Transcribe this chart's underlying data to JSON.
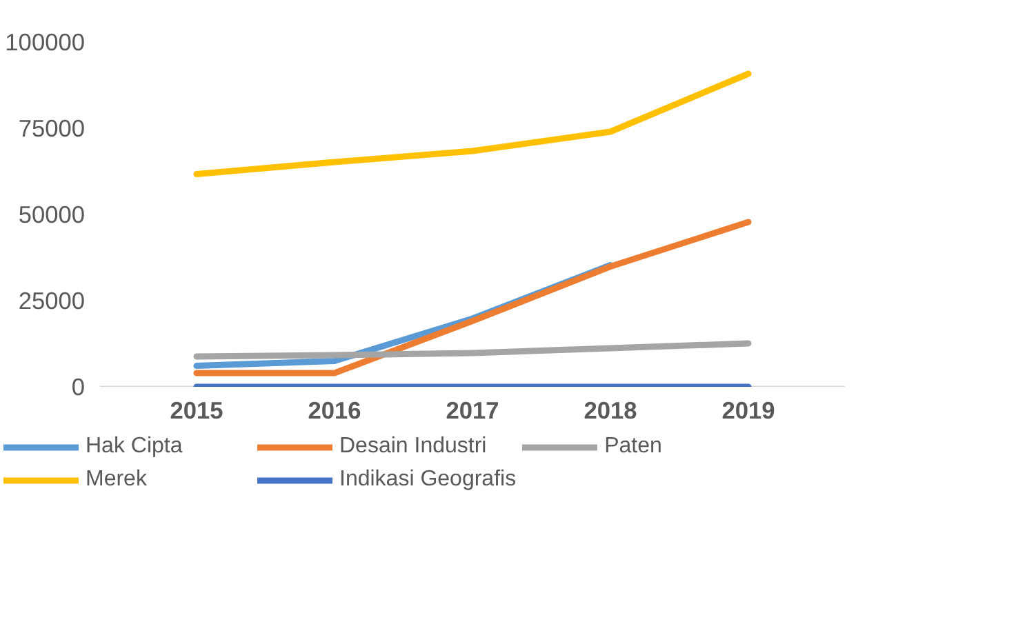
{
  "chart_data": {
    "type": "line",
    "categories": [
      "2015",
      "2016",
      "2017",
      "2018",
      "2019"
    ],
    "series": [
      {
        "name": "Hak Cipta",
        "color": "#5b9bd5",
        "values": [
          6100,
          7500,
          19800,
          35300,
          null
        ]
      },
      {
        "name": "Desain Industri",
        "color": "#ed7d31",
        "values": [
          4000,
          4000,
          19100,
          34900,
          47800
        ]
      },
      {
        "name": "Paten",
        "color": "#a5a5a5",
        "values": [
          8800,
          9200,
          9800,
          11200,
          12600
        ]
      },
      {
        "name": "Merek",
        "color": "#ffc000",
        "values": [
          61700,
          65200,
          68400,
          74000,
          90800
        ]
      },
      {
        "name": "Indikasi Geografis",
        "color": "#4472c4",
        "values": [
          0,
          0,
          0,
          0,
          0
        ]
      }
    ],
    "ylim": [
      0,
      100000
    ],
    "yticks": [
      0,
      25000,
      50000,
      75000,
      100000
    ],
    "grid": false,
    "legend": "bottom",
    "marker": "none",
    "line_style": "solid"
  }
}
